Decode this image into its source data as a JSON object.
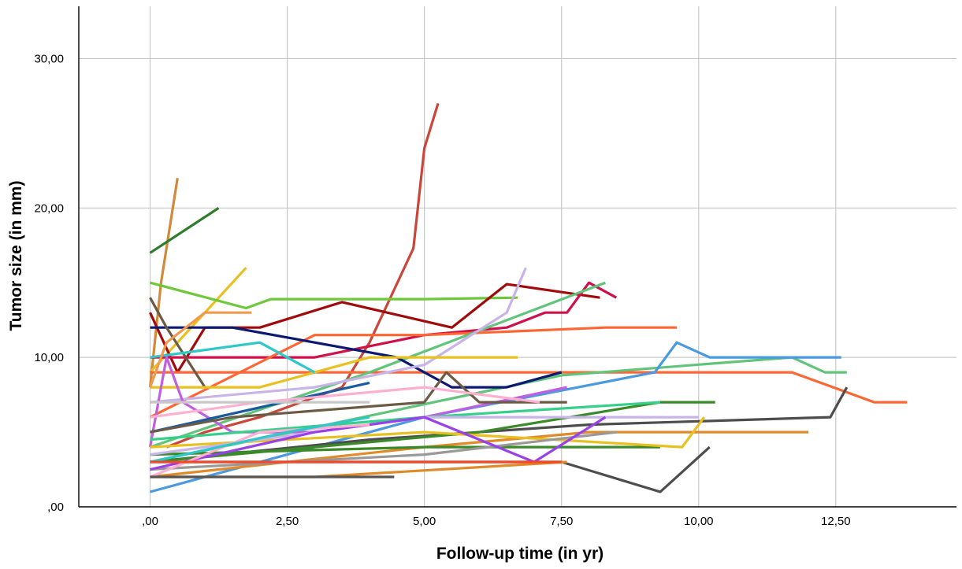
{
  "chart_data": {
    "type": "line",
    "xlabel": "Follow-up time (in yr)",
    "ylabel": "Tumor size (in mm)",
    "xlim": [
      -1.3,
      14.7
    ],
    "ylim": [
      0,
      33.5
    ],
    "x_ticks": [
      0,
      2.5,
      5,
      7.5,
      10,
      12.5
    ],
    "x_tick_labels": [
      ",00",
      "2,50",
      "5,00",
      "7,50",
      "10,00",
      "12,50"
    ],
    "y_ticks": [
      0,
      10,
      20,
      30
    ],
    "y_tick_labels": [
      ",00",
      "10,00",
      "20,00",
      "30,00"
    ],
    "grid": true,
    "legend": "none",
    "series": [
      {
        "color": "#c8473a",
        "x": [
          0.3,
          1.0,
          2.0,
          3.5,
          4.0,
          4.8,
          5.0,
          5.25
        ],
        "y": [
          4.0,
          5.0,
          6.0,
          8.0,
          11.0,
          17.3,
          24.0,
          27.0
        ]
      },
      {
        "color": "#d08a3a",
        "x": [
          0.0,
          0.2,
          0.5
        ],
        "y": [
          8.0,
          15.0,
          22.0
        ]
      },
      {
        "color": "#2e7d2e",
        "x": [
          0.0,
          1.25
        ],
        "y": [
          17.0,
          20.0
        ]
      },
      {
        "color": "#e8c020",
        "x": [
          0.0,
          1.0,
          1.75
        ],
        "y": [
          9.0,
          13.0,
          16.0
        ]
      },
      {
        "color": "#6ec83a",
        "x": [
          0.0,
          1.75,
          2.2,
          5.0,
          6.7
        ],
        "y": [
          15.0,
          13.3,
          13.9,
          13.9,
          14.0
        ]
      },
      {
        "color": "#a00a0a",
        "x": [
          0.0,
          0.5,
          1.0,
          2.0,
          3.5,
          5.5,
          6.5,
          8.2
        ],
        "y": [
          13.0,
          9.0,
          12.0,
          12.0,
          13.7,
          12.0,
          14.9,
          14.0
        ]
      },
      {
        "color": "#d0104a",
        "x": [
          0.0,
          1.0,
          3.0,
          5.0,
          6.5,
          7.2,
          7.6,
          8.0,
          8.5
        ],
        "y": [
          10.0,
          10.0,
          10.0,
          11.5,
          12.0,
          13.0,
          13.0,
          15.0,
          14.0
        ]
      },
      {
        "color": "#ff6633",
        "x": [
          0.0,
          3.0,
          5.0,
          8.3,
          9.6
        ],
        "y": [
          6.0,
          11.5,
          11.5,
          12.0,
          12.0
        ]
      },
      {
        "color": "#ff6633",
        "x": [
          0.0,
          5.0,
          11.7,
          13.2,
          13.8
        ],
        "y": [
          9.0,
          9.0,
          9.0,
          7.0,
          7.0
        ]
      },
      {
        "color": "#62c47a",
        "x": [
          0.0,
          4.0,
          8.3
        ],
        "y": [
          4.0,
          9.0,
          15.0
        ]
      },
      {
        "color": "#62c47a",
        "x": [
          0.0,
          7.5,
          11.7,
          12.3,
          12.7
        ],
        "y": [
          3.0,
          8.8,
          10.0,
          9.0,
          9.0
        ]
      },
      {
        "color": "#4a9ae0",
        "x": [
          0.0,
          5.0,
          9.2,
          9.6,
          10.2,
          11.5,
          12.6
        ],
        "y": [
          1.0,
          6.0,
          9.0,
          11.0,
          10.0,
          10.0,
          10.0
        ]
      },
      {
        "color": "#0a1a70",
        "x": [
          0.0,
          1.5,
          4.5,
          5.5,
          6.5,
          7.5
        ],
        "y": [
          12.0,
          12.0,
          10.0,
          8.0,
          8.0,
          9.0
        ]
      },
      {
        "color": "#4d4d4d",
        "x": [
          0.0,
          4.0,
          8.0,
          12.4,
          12.7
        ],
        "y": [
          3.0,
          4.5,
          5.5,
          6.0,
          8.0
        ]
      },
      {
        "color": "#4d4d4d",
        "x": [
          0.0,
          5.0,
          7.5,
          9.3,
          10.2
        ],
        "y": [
          3.0,
          3.0,
          3.0,
          1.0,
          4.0
        ]
      },
      {
        "color": "#6b5b45",
        "x": [
          0.0,
          0.3,
          1.0
        ],
        "y": [
          14.0,
          12.0,
          8.0
        ]
      },
      {
        "color": "#c8b4e8",
        "x": [
          0.0,
          3.0,
          5.0,
          6.5,
          6.85
        ],
        "y": [
          7.0,
          8.0,
          9.5,
          13.0,
          16.0
        ]
      },
      {
        "color": "#e8c020",
        "x": [
          0.0,
          2.0,
          4.0,
          6.7
        ],
        "y": [
          8.0,
          8.0,
          10.0,
          10.0
        ]
      },
      {
        "color": "#c060e0",
        "x": [
          0.0,
          0.3,
          0.6,
          1.5,
          3.0,
          5.0,
          7.6
        ],
        "y": [
          4.0,
          10.0,
          7.0,
          5.0,
          5.0,
          6.0,
          8.0
        ]
      },
      {
        "color": "#1a5aa0",
        "x": [
          0.0,
          4.0
        ],
        "y": [
          5.0,
          8.3
        ]
      },
      {
        "color": "#2ec8c8",
        "x": [
          0.0,
          2.0,
          3.0
        ],
        "y": [
          10.0,
          11.0,
          9.0
        ]
      },
      {
        "color": "#e08a2a",
        "x": [
          0.0,
          5.0,
          8.0,
          12.0
        ],
        "y": [
          2.0,
          4.0,
          5.0,
          5.0
        ]
      },
      {
        "color": "#e08a2a",
        "x": [
          0.0,
          3.0,
          7.6
        ],
        "y": [
          2.0,
          2.0,
          3.0
        ]
      },
      {
        "color": "#3a8a2a",
        "x": [
          0.0,
          6.0,
          9.3,
          10.3
        ],
        "y": [
          3.0,
          5.0,
          7.0,
          7.0
        ]
      },
      {
        "color": "#3a8a2a",
        "x": [
          0.0,
          5.0,
          9.3
        ],
        "y": [
          3.5,
          4.0,
          4.0
        ]
      },
      {
        "color": "#e8c020",
        "x": [
          0.0,
          5.0,
          9.7,
          10.1
        ],
        "y": [
          4.0,
          5.0,
          4.0,
          6.0
        ]
      },
      {
        "color": "#36d08a",
        "x": [
          0.0,
          5.0,
          9.3
        ],
        "y": [
          4.5,
          6.0,
          7.0
        ]
      },
      {
        "color": "#c8b4e8",
        "x": [
          0.0,
          5.0,
          10.0
        ],
        "y": [
          3.5,
          6.0,
          6.0
        ]
      },
      {
        "color": "#999999",
        "x": [
          0.0,
          5.0,
          8.5
        ],
        "y": [
          2.5,
          3.5,
          5.0
        ]
      },
      {
        "color": "#9a40e8",
        "x": [
          0.0,
          3.0,
          5.0,
          7.0,
          8.3
        ],
        "y": [
          2.5,
          5.0,
          6.0,
          3.0,
          6.0
        ]
      },
      {
        "color": "#6b5b45",
        "x": [
          0.0,
          1.5,
          5.0,
          5.4,
          6.0,
          7.6
        ],
        "y": [
          5.0,
          6.0,
          7.0,
          9.0,
          7.0,
          7.0
        ]
      },
      {
        "color": "#ffb0d0",
        "x": [
          0.0,
          2.0,
          5.0,
          7.1
        ],
        "y": [
          6.0,
          7.0,
          8.0,
          7.0
        ]
      },
      {
        "color": "#f09a50",
        "x": [
          0.0,
          0.3,
          1.0,
          1.85
        ],
        "y": [
          8.0,
          11.0,
          13.0,
          13.0
        ]
      },
      {
        "color": "#ffb0d0",
        "x": [
          0.0,
          2.0,
          4.0
        ],
        "y": [
          2.0,
          5.0,
          5.5
        ]
      },
      {
        "color": "#c8c8c8",
        "x": [
          0.0,
          4.0
        ],
        "y": [
          7.0,
          7.0
        ]
      },
      {
        "color": "#555555",
        "x": [
          0.0,
          2.0,
          4.45
        ],
        "y": [
          2.0,
          2.0,
          2.0
        ]
      },
      {
        "color": "#2ec8c8",
        "x": [
          0.0,
          2.5,
          4.0
        ],
        "y": [
          3.0,
          5.0,
          6.0
        ]
      },
      {
        "color": "#f04a2a",
        "x": [
          0.0,
          3.0,
          7.5
        ],
        "y": [
          3.0,
          3.0,
          3.0
        ]
      }
    ]
  }
}
